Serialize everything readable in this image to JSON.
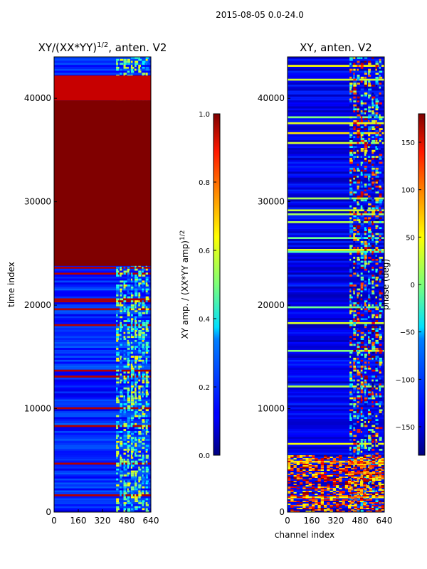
{
  "suptitle": "2015-08-05 0.0-24.0",
  "chart_data": [
    {
      "type": "heatmap",
      "title_base": "XY/(XX*YY)",
      "title_exp": "1/2",
      "title_tail": ", anten. V2",
      "xlabel": "",
      "ylabel": "time index",
      "xlim": [
        0,
        640
      ],
      "ylim": [
        0,
        44000
      ],
      "xticks": [
        "0",
        "160",
        "320",
        "480",
        "640"
      ],
      "yticks": [
        "0",
        "10000",
        "20000",
        "30000",
        "40000"
      ],
      "colorbar": {
        "label_base": "XY amp. / (XX*YY amp)",
        "label_exp": "1/2",
        "ticks": [
          "0.0",
          "0.2",
          "0.4",
          "0.6",
          "0.8",
          "1.0"
        ],
        "vmin": 0,
        "vmax": 1,
        "colormap": "jet"
      },
      "features": {
        "saturated_row_band": [
          23800,
          39800
        ],
        "active_channel_band": [
          410,
          630
        ]
      }
    },
    {
      "type": "heatmap",
      "title": "XY, anten. V2",
      "xlabel": "channel index",
      "ylabel": "",
      "xlim": [
        0,
        640
      ],
      "ylim": [
        0,
        44000
      ],
      "xticks": [
        "0",
        "160",
        "320",
        "480",
        "640"
      ],
      "yticks": [
        "0",
        "10000",
        "20000",
        "30000",
        "40000"
      ],
      "colorbar": {
        "label": "phase (deg)",
        "ticks": [
          "−150",
          "−100",
          "−50",
          "0",
          "50",
          "100",
          "150"
        ],
        "vmin": -180,
        "vmax": 180,
        "colormap": "jet"
      },
      "features": {
        "active_channel_band": [
          410,
          630
        ],
        "noisy_row_band": [
          0,
          5500
        ]
      }
    }
  ]
}
